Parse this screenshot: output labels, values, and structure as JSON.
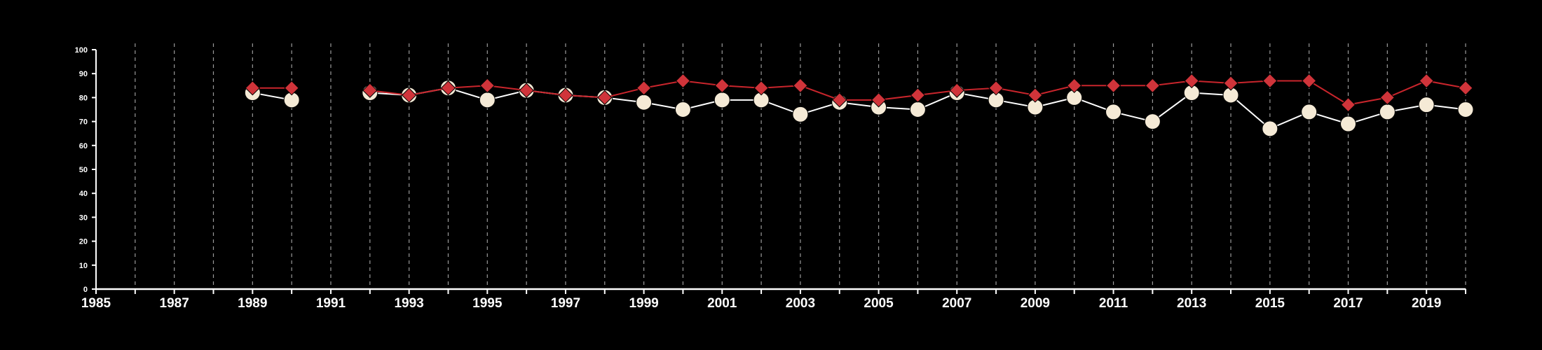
{
  "chart_data": {
    "type": "line",
    "title": "",
    "xlabel": "",
    "ylabel": "",
    "xlim": [
      1985,
      2020
    ],
    "ylim": [
      0,
      100
    ],
    "y_ticks": [
      0,
      10,
      20,
      30,
      40,
      50,
      60,
      70,
      80,
      90,
      100
    ],
    "x_tick_labels": [
      "1985",
      "1987",
      "1989",
      "1991",
      "1993",
      "1995",
      "1997",
      "1999",
      "2001",
      "2003",
      "2005",
      "2007",
      "2009",
      "2011",
      "2013",
      "2015",
      "2017",
      "2019"
    ],
    "x_gridlines": [
      1986,
      1987,
      1988,
      1989,
      1990,
      1991,
      1992,
      1993,
      1994,
      1995,
      1996,
      1997,
      1998,
      1999,
      2000,
      2001,
      2002,
      2003,
      2004,
      2005,
      2006,
      2007,
      2008,
      2009,
      2010,
      2011,
      2012,
      2013,
      2014,
      2015,
      2016,
      2017,
      2018,
      2019,
      2020
    ],
    "grid": "vertical dashed",
    "background": "#000000",
    "axis_color": "#ffffff",
    "grid_color": "#9a9a9a",
    "series": [
      {
        "marker": "circle",
        "color": "#ffffff",
        "marker_color": "#f5ead6",
        "x": [
          1989,
          1990,
          1992,
          1993,
          1994,
          1995,
          1996,
          1997,
          1998,
          1999,
          2000,
          2001,
          2002,
          2003,
          2004,
          2005,
          2006,
          2007,
          2008,
          2009,
          2010,
          2011,
          2012,
          2013,
          2014,
          2015,
          2016,
          2017,
          2018,
          2019,
          2020
        ],
        "y": [
          82,
          79,
          82,
          81,
          84,
          79,
          83,
          81,
          80,
          78,
          75,
          79,
          79,
          73,
          78,
          76,
          75,
          82,
          79,
          76,
          80,
          74,
          70,
          82,
          81,
          67,
          74,
          69,
          74,
          77,
          75
        ]
      },
      {
        "marker": "diamond",
        "color": "#c9252c",
        "marker_color": "#d0343a",
        "x": [
          1989,
          1990,
          1992,
          1993,
          1994,
          1995,
          1996,
          1997,
          1998,
          1999,
          2000,
          2001,
          2002,
          2003,
          2004,
          2005,
          2006,
          2007,
          2008,
          2009,
          2010,
          2011,
          2012,
          2013,
          2014,
          2015,
          2016,
          2017,
          2018,
          2019,
          2020
        ],
        "y": [
          84,
          84,
          83,
          81,
          84,
          85,
          83,
          81,
          80,
          84,
          87,
          85,
          84,
          85,
          79,
          79,
          81,
          83,
          84,
          81,
          85,
          85,
          85,
          87,
          86,
          87,
          87,
          77,
          80,
          87,
          84
        ]
      }
    ]
  }
}
